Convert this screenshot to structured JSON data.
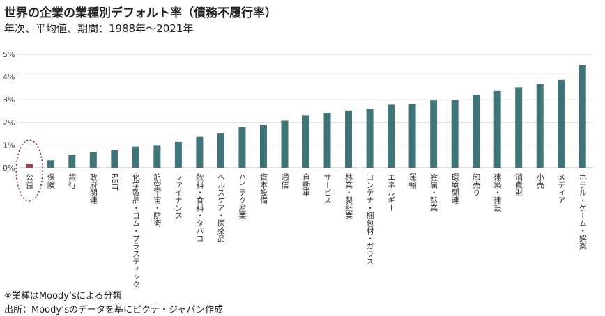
{
  "header": {
    "title": "世界の企業の業種別デフォルト率（債務不履行率）",
    "subtitle": "年次、平均値、期間：1988年～2021年"
  },
  "footnotes": {
    "note1": "※業種はMoody’sによる分類",
    "note2": "出所：Moody’sのデータを基にピクテ・ジャパン作成"
  },
  "colors": {
    "bar": "#3f7479",
    "highlight": "#a4404f",
    "highlight_circle": "#7a1f2b",
    "grid": "#d9d9d9"
  },
  "chart_data": {
    "type": "bar",
    "title": "世界の企業の業種別デフォルト率（債務不履行率）",
    "xlabel": "",
    "ylabel": "",
    "ylim": [
      0,
      5
    ],
    "yticks": [
      "0%",
      "1%",
      "2%",
      "3%",
      "4%",
      "5%"
    ],
    "grid": true,
    "highlight_category": "公益",
    "categories": [
      "公益",
      "保険",
      "銀行",
      "政府関連",
      "REIT",
      "化学製品・ゴム・プラスティック",
      "航空宇宙・防衛",
      "ファイナンス",
      "飲料・食料・タバコ",
      "ヘルスケア・医薬品",
      "ハイテク産業",
      "資本設備",
      "通信",
      "自動車",
      "サービス",
      "林業・製紙業",
      "コンテナ・梱包材・ガラス",
      "エネルギー",
      "運輸",
      "金属・鉱業",
      "環境関連",
      "卸売り",
      "建築・建設",
      "消費財",
      "小売",
      "メディア",
      "ホテル・ゲーム・娯楽"
    ],
    "values": [
      0.18,
      0.33,
      0.57,
      0.69,
      0.77,
      0.93,
      0.97,
      1.14,
      1.36,
      1.53,
      1.79,
      1.9,
      2.07,
      2.32,
      2.42,
      2.52,
      2.59,
      2.78,
      2.81,
      2.97,
      2.99,
      3.22,
      3.38,
      3.55,
      3.68,
      3.87,
      4.53
    ]
  }
}
